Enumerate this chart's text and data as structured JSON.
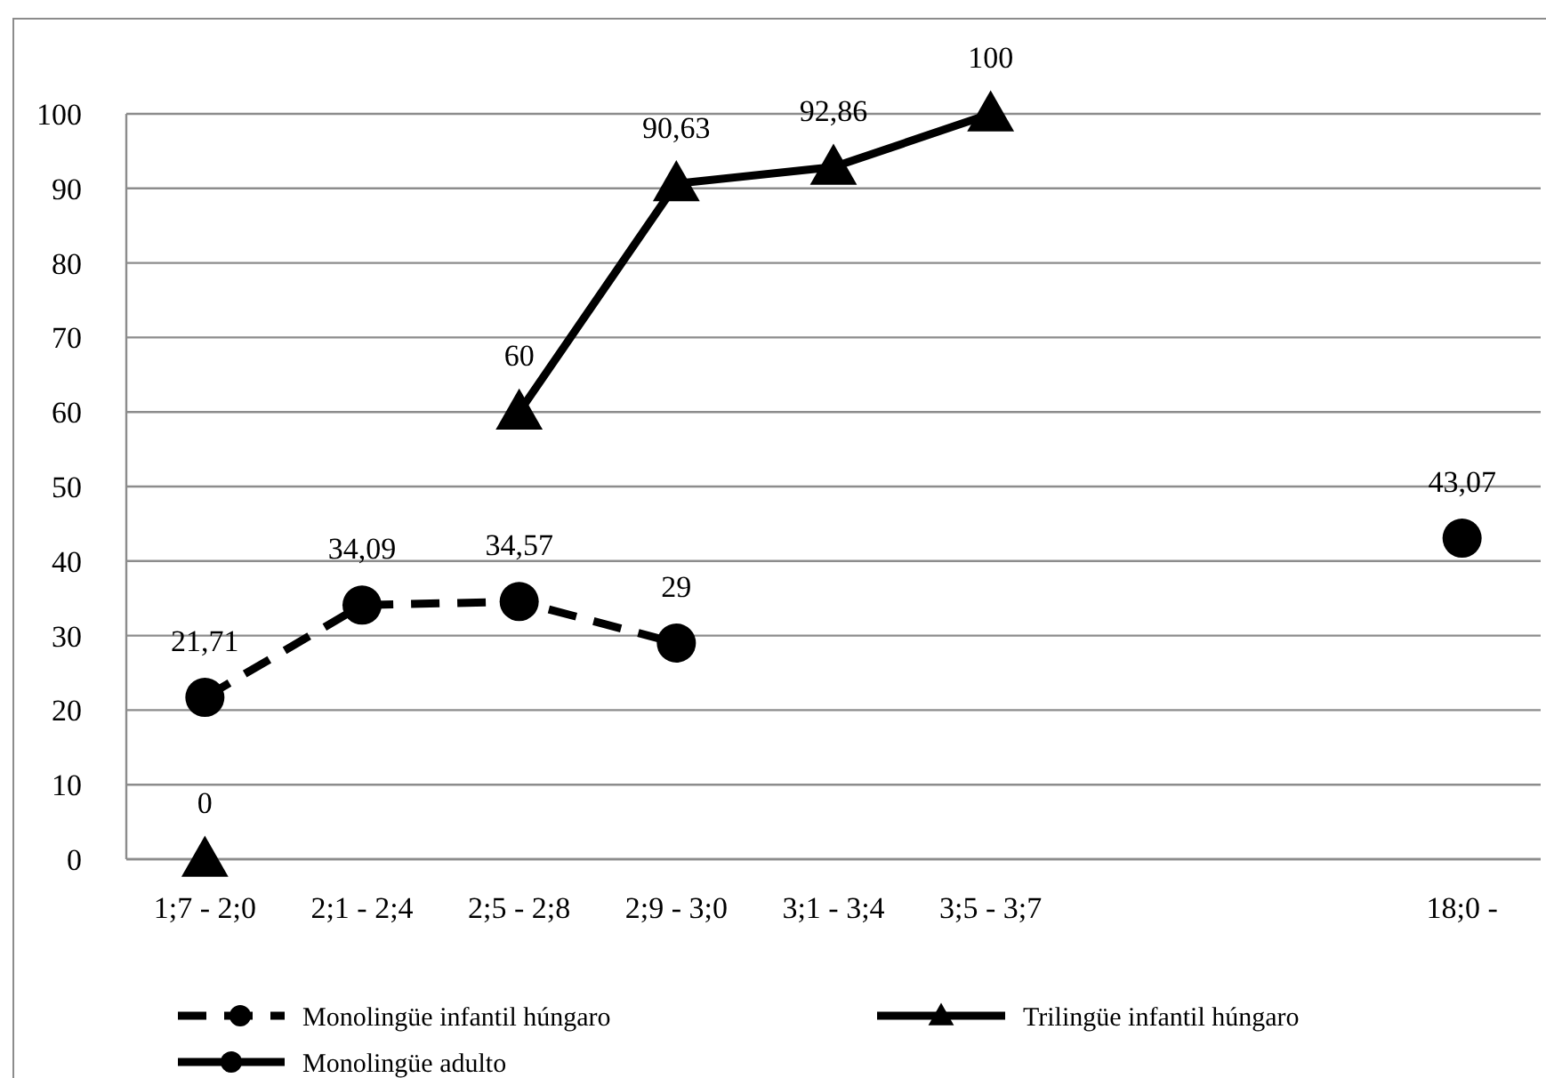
{
  "chart_data": {
    "type": "line",
    "categories": [
      "1;7 - 2;0",
      "2;1 - 2;4",
      "2;5 - 2;8",
      "2;9 - 3;0",
      "3;1 - 3;4",
      "3;5 - 3;7",
      null,
      null,
      "18;0 -"
    ],
    "series": [
      {
        "name": "Monolingüe infantil húngaro",
        "color": "#000000",
        "marker": "circle",
        "line_style": "dashed",
        "values": [
          21.71,
          34.09,
          34.57,
          29,
          null,
          null,
          null,
          null,
          null
        ],
        "value_labels": [
          "21,71",
          "34,09",
          "34,57",
          "29",
          null,
          null,
          null,
          null,
          null
        ]
      },
      {
        "name": "Trilingüe infantil húngaro",
        "color": "#000000",
        "marker": "triangle",
        "line_style": "solid",
        "values": [
          0,
          null,
          60,
          90.63,
          92.86,
          100,
          null,
          null,
          null
        ],
        "value_labels": [
          "0",
          null,
          "60",
          "90,63",
          "92,86",
          "100",
          null,
          null,
          null
        ]
      },
      {
        "name": "Monolingüe adulto",
        "color": "#000000",
        "marker": "circle",
        "line_style": "solid",
        "values": [
          null,
          null,
          null,
          null,
          null,
          null,
          null,
          null,
          43.07
        ],
        "value_labels": [
          null,
          null,
          null,
          null,
          null,
          null,
          null,
          null,
          "43,07"
        ]
      }
    ],
    "ylim": [
      0,
      100
    ],
    "yticks": [
      0,
      10,
      20,
      30,
      40,
      50,
      60,
      70,
      80,
      90,
      100
    ],
    "grid": "y",
    "legend": "bottom"
  }
}
